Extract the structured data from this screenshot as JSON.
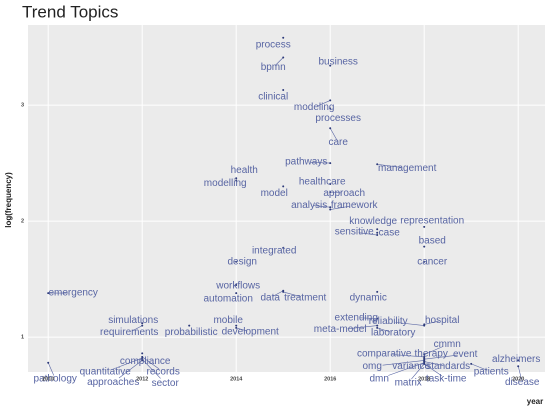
{
  "chart_data": {
    "type": "scatter",
    "title": "Trend Topics",
    "x_label": "year",
    "y_label": "log(frequency)",
    "color": "#5865a3",
    "point_color": "#2d3a7a",
    "grid": true,
    "xlim": [
      2009.57,
      2020.57
    ],
    "ylim": [
      0.7,
      3.69
    ],
    "xticks": [
      2010,
      2012,
      2014,
      2016,
      2018,
      2020
    ],
    "yticks": [
      1,
      2,
      3
    ],
    "labels": [
      "process",
      "bpmn",
      "business",
      "clinical",
      "modeling",
      "processes",
      "care",
      "pathways",
      "management",
      "health",
      "modelling",
      "healthcare",
      "model",
      "approach",
      "analysis",
      "framework",
      "knowledge",
      "representation",
      "sensitive",
      "case",
      "based",
      "integrated",
      "design",
      "cancer",
      "workflows",
      "automation",
      "data",
      "treatment",
      "emergency",
      "dynamic",
      "simulations",
      "requirements",
      "probabilistic",
      "mobile",
      "development",
      "extending",
      "reliability",
      "hospital",
      "meta-model",
      "laboratory",
      "compliance",
      "quantitative",
      "records",
      "approaches",
      "sector",
      "pathology",
      "cmmn",
      "comparative",
      "therapy",
      "event",
      "omg",
      "variance",
      "standards",
      "dmn",
      "matrix",
      "task-time",
      "patients",
      "alzheimers",
      "disease"
    ],
    "x": [
      2015,
      2015,
      2016,
      2015,
      2016,
      2016,
      2016,
      2016,
      2017,
      2014,
      2014,
      2016,
      2015,
      2016,
      2016,
      2016,
      2017,
      2018,
      2017,
      2017,
      2018,
      2015,
      2014,
      2018,
      2014,
      2014,
      2015,
      2015,
      2010,
      2017,
      2012,
      2012,
      2013,
      2014,
      2014,
      2017,
      2018,
      2018,
      2017,
      2017,
      2012,
      2012,
      2012,
      2012,
      2012,
      2010,
      2018,
      2018,
      2018,
      2018,
      2018,
      2018,
      2018,
      2018,
      2018,
      2018,
      2019,
      2020,
      2020
    ],
    "values": [
      3.58,
      3.41,
      3.34,
      3.13,
      3.04,
      2.97,
      2.8,
      2.5,
      2.49,
      2.37,
      2.35,
      2.32,
      2.3,
      2.25,
      2.12,
      2.1,
      1.93,
      1.95,
      1.88,
      1.9,
      1.78,
      1.77,
      1.65,
      1.65,
      1.45,
      1.38,
      1.4,
      1.39,
      1.38,
      1.39,
      1.12,
      1.1,
      1.1,
      1.1,
      1.08,
      1.16,
      1.1,
      1.11,
      1.1,
      1.08,
      0.86,
      0.82,
      0.83,
      0.8,
      0.81,
      0.78,
      0.85,
      0.83,
      0.82,
      0.81,
      0.8,
      0.79,
      0.79,
      0.78,
      0.77,
      0.77,
      0.77,
      0.8,
      0.75
    ]
  }
}
